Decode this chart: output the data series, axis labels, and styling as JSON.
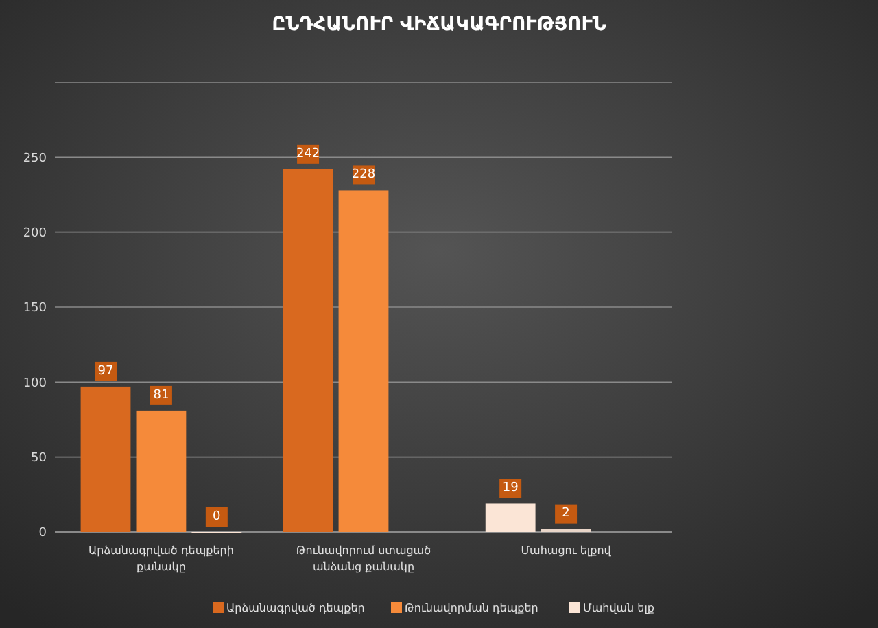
{
  "chart_data": {
    "type": "bar",
    "title": "ԸՆԴՀԱՆՈՒՐ ՎԻՃԱԿԱԳՐՈՒԹՅՈՒՆ",
    "categories": [
      "Արձանագրված դեպքերի քանակը",
      "Թունավորում ստացած անձանց քանակը",
      "Մահացու ելքով"
    ],
    "series": [
      {
        "name": "Արձանագրված դեպքեր",
        "color": "#d9691f",
        "colors": [
          "#d9691f",
          "#d9691f",
          "#fbe5d6"
        ],
        "values": [
          97,
          242,
          19
        ]
      },
      {
        "name": "Թունավորման դեպքեր",
        "color": "#f58a3a",
        "colors": [
          "#f58a3a",
          "#f58a3a",
          "#e8d5c8"
        ],
        "values": [
          81,
          228,
          2
        ]
      },
      {
        "name": "Մահվան ելք",
        "color": "#fbe5d6",
        "values": [
          0,
          null,
          null
        ]
      }
    ],
    "ylim": [
      0,
      300
    ],
    "yticks": [
      0,
      50,
      100,
      150,
      200,
      250,
      {
        "value": 300,
        "label": null
      }
    ],
    "grid": "y",
    "data_labels": true,
    "legend": "bottom"
  }
}
